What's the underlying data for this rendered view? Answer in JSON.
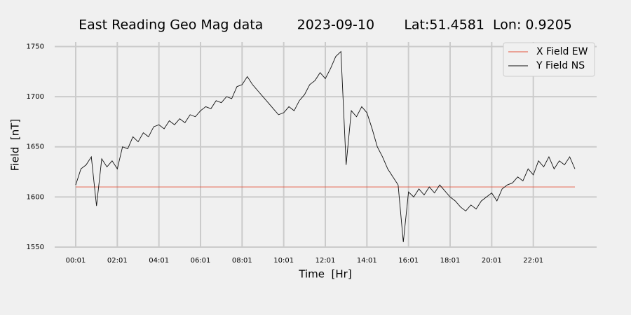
{
  "chart_data": {
    "type": "line",
    "title": "East Reading Geo Mag data        2023-09-10       Lat:51.4581  Lon: 0.9205",
    "x_label": "Time  [Hr]",
    "y_label": "Field  [nT]",
    "x": [
      "00:01",
      "00:16",
      "00:31",
      "00:46",
      "01:01",
      "01:16",
      "01:31",
      "01:46",
      "02:01",
      "02:16",
      "02:31",
      "02:46",
      "03:01",
      "03:16",
      "03:31",
      "03:46",
      "04:01",
      "04:16",
      "04:31",
      "04:46",
      "05:01",
      "05:16",
      "05:31",
      "05:46",
      "06:01",
      "06:16",
      "06:31",
      "06:46",
      "07:01",
      "07:16",
      "07:31",
      "07:46",
      "08:01",
      "08:16",
      "08:31",
      "08:46",
      "09:01",
      "09:16",
      "09:31",
      "09:46",
      "10:01",
      "10:16",
      "10:31",
      "10:46",
      "11:01",
      "11:16",
      "11:31",
      "11:46",
      "12:01",
      "12:16",
      "12:31",
      "12:46",
      "13:01",
      "13:16",
      "13:31",
      "13:46",
      "14:01",
      "14:16",
      "14:31",
      "14:46",
      "15:01",
      "15:16",
      "15:31",
      "15:46",
      "16:01",
      "16:16",
      "16:31",
      "16:46",
      "17:01",
      "17:16",
      "17:31",
      "17:46",
      "18:01",
      "18:16",
      "18:31",
      "18:46",
      "19:01",
      "19:16",
      "19:31",
      "19:46",
      "20:01",
      "20:16",
      "20:31",
      "20:46",
      "21:01",
      "21:16",
      "21:31",
      "21:46",
      "22:01",
      "22:16",
      "22:31",
      "22:46",
      "23:01",
      "23:16",
      "23:31",
      "23:46",
      "24:01"
    ],
    "series": [
      {
        "name": "X Field EW",
        "color": "#e5533d",
        "values": [
          1610,
          1610,
          1610,
          1610,
          1610,
          1610,
          1610,
          1610,
          1610,
          1610,
          1610,
          1610,
          1610,
          1610,
          1610,
          1610,
          1610,
          1610,
          1610,
          1610,
          1610,
          1610,
          1610,
          1610,
          1610,
          1610,
          1610,
          1610,
          1610,
          1610,
          1610,
          1610,
          1610,
          1610,
          1610,
          1610,
          1610,
          1610,
          1610,
          1610,
          1610,
          1610,
          1610,
          1610,
          1610,
          1610,
          1610,
          1610,
          1610,
          1610,
          1610,
          1610,
          1610,
          1610,
          1610,
          1610,
          1610,
          1610,
          1610,
          1610,
          1610,
          1610,
          1610,
          1610,
          1610,
          1610,
          1610,
          1610,
          1610,
          1610,
          1610,
          1610,
          1610,
          1610,
          1610,
          1610,
          1610,
          1610,
          1610,
          1610,
          1610,
          1610,
          1610,
          1610,
          1610,
          1610,
          1610,
          1610,
          1610,
          1610,
          1610,
          1610,
          1610,
          1610,
          1610,
          1610,
          1610
        ]
      },
      {
        "name": "Y Field NS",
        "color": "#111111",
        "values": [
          1612,
          1628,
          1632,
          1640,
          1591,
          1638,
          1630,
          1636,
          1628,
          1650,
          1648,
          1660,
          1655,
          1664,
          1660,
          1670,
          1672,
          1668,
          1676,
          1672,
          1678,
          1674,
          1682,
          1680,
          1686,
          1690,
          1688,
          1696,
          1694,
          1700,
          1698,
          1710,
          1712,
          1720,
          1712,
          1706,
          1700,
          1694,
          1688,
          1682,
          1684,
          1690,
          1686,
          1696,
          1702,
          1712,
          1716,
          1724,
          1718,
          1728,
          1740,
          1745,
          1632,
          1686,
          1680,
          1690,
          1684,
          1668,
          1650,
          1640,
          1628,
          1620,
          1612,
          1555,
          1605,
          1600,
          1608,
          1602,
          1610,
          1604,
          1612,
          1606,
          1600,
          1596,
          1590,
          1586,
          1592,
          1588,
          1596,
          1600,
          1604,
          1596,
          1608,
          1612,
          1614,
          1620,
          1616,
          1628,
          1622,
          1636,
          1630,
          1640,
          1628,
          1636,
          1632,
          1640,
          1628
        ]
      }
    ],
    "xticks": [
      "00:01",
      "02:01",
      "04:01",
      "06:01",
      "08:01",
      "10:01",
      "12:01",
      "14:01",
      "16:01",
      "18:01",
      "20:01",
      "22:01"
    ],
    "ylim": [
      1550,
      1758
    ],
    "yticks": [
      1550,
      1600,
      1650,
      1700,
      1750
    ],
    "grid": true,
    "legend": "upper right"
  }
}
